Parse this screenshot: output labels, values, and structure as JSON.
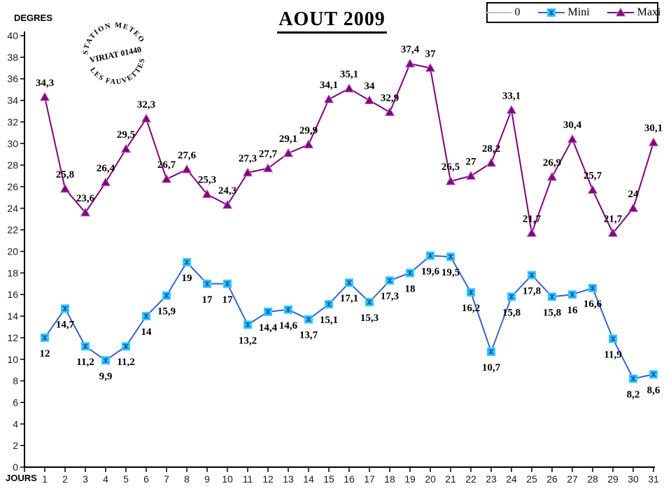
{
  "title": "AOUT 2009",
  "y_axis_title": "DEGRES",
  "x_axis_title": "JOURS",
  "stamp": {
    "top": "STATION METEO",
    "middle": "VIRIAT 01440",
    "bottom": "LES FAUVETTES"
  },
  "legend": {
    "entries": [
      {
        "label": "0",
        "color": "#C0C0C0",
        "marker": "none",
        "marker_fill": "#C0C0C0"
      },
      {
        "label": "Mini",
        "color": "#3366CC",
        "marker": "square",
        "marker_fill": "#33CCFF"
      },
      {
        "label": "Maxi",
        "color": "#800080",
        "marker": "triangle",
        "marker_fill": "#800080"
      }
    ]
  },
  "chart_data": {
    "type": "line",
    "title": "AOUT 2009",
    "xlabel": "JOURS",
    "ylabel": "DEGRES",
    "categories": [
      1,
      2,
      3,
      4,
      5,
      6,
      7,
      8,
      9,
      10,
      11,
      12,
      13,
      14,
      15,
      16,
      17,
      18,
      19,
      20,
      21,
      22,
      23,
      24,
      25,
      26,
      27,
      28,
      29,
      30,
      31
    ],
    "series": [
      {
        "name": "0",
        "color": "#C0C0C0",
        "marker": "none",
        "show_labels": false,
        "label_position": "none",
        "values": [
          0,
          0,
          0,
          0,
          0,
          0,
          0,
          0,
          0,
          0,
          0,
          0,
          0,
          0,
          0,
          0,
          0,
          0,
          0,
          0,
          0,
          0,
          0,
          0,
          0,
          0,
          0,
          0,
          0,
          0,
          0
        ]
      },
      {
        "name": "Mini",
        "color": "#3366CC",
        "marker": "square",
        "marker_fill": "#33CCFF",
        "marker_detail": "#1F4FB4",
        "show_labels": true,
        "label_position": "below",
        "values": [
          12,
          14.7,
          11.2,
          9.9,
          11.2,
          14,
          15.9,
          19,
          17,
          17,
          13.2,
          14.4,
          14.6,
          13.7,
          15.1,
          17.1,
          15.3,
          17.3,
          18,
          19.6,
          19.5,
          16.2,
          10.7,
          15.8,
          17.8,
          15.8,
          16,
          16.6,
          11.9,
          8.2,
          8.6
        ]
      },
      {
        "name": "Maxi",
        "color": "#800080",
        "marker": "triangle",
        "marker_fill": "#800080",
        "marker_detail": "#C080C0",
        "show_labels": true,
        "label_position": "above",
        "values": [
          34.3,
          25.8,
          23.6,
          26.4,
          29.5,
          32.3,
          26.7,
          27.6,
          25.3,
          24.3,
          27.3,
          27.7,
          29.1,
          29.9,
          34.1,
          35.1,
          34,
          32.9,
          37.4,
          37,
          26.5,
          27,
          28.2,
          33.1,
          21.7,
          26.9,
          30.4,
          25.7,
          21.7,
          24,
          30.1
        ]
      }
    ],
    "ylim": [
      0,
      40
    ],
    "y_ticks": [
      0,
      2,
      4,
      6,
      8,
      10,
      12,
      14,
      16,
      18,
      20,
      22,
      24,
      26,
      28,
      30,
      32,
      34,
      36,
      38,
      40
    ],
    "grid": false,
    "legend_position": "top-right",
    "decimal_separator": ","
  }
}
